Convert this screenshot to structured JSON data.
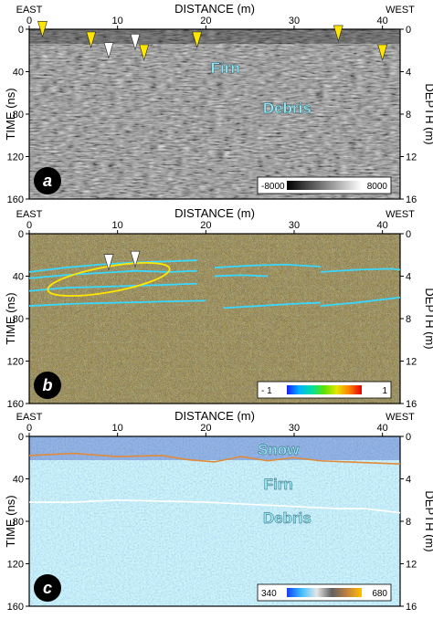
{
  "figure": {
    "panels": [
      {
        "id": "a",
        "top_axis": {
          "title": "DISTANCE (m)",
          "left_end": "EAST",
          "right_end": "WEST",
          "ticks": [
            {
              "v": 0,
              "label": "0"
            },
            {
              "v": 10,
              "label": "10"
            },
            {
              "v": 20,
              "label": "20"
            },
            {
              "v": 30,
              "label": "30"
            },
            {
              "v": 40,
              "label": "40"
            }
          ]
        },
        "left_axis": {
          "title": "TIME (ns)",
          "ticks": [
            {
              "v": 0,
              "label": "0"
            },
            {
              "v": 40,
              "label": "40"
            },
            {
              "v": 80,
              "label": "80"
            },
            {
              "v": 120,
              "label": "120"
            },
            {
              "v": 160,
              "label": "160"
            }
          ]
        },
        "right_axis": {
          "title": "DEPTH (m)",
          "ticks": [
            {
              "v": 0,
              "label": "0"
            },
            {
              "v": 4,
              "label": "4"
            },
            {
              "v": 8,
              "label": "8"
            },
            {
              "v": 12,
              "label": "12"
            },
            {
              "v": 16,
              "label": "16"
            }
          ]
        },
        "annotations": [
          "Firn",
          "Debris"
        ],
        "colorbar": {
          "min_label": "-8000",
          "max_label": "8000",
          "colors": [
            "#000000",
            "#ffffff"
          ]
        },
        "markers": {
          "yellow": [
            {
              "x": 1.5,
              "t": 2
            },
            {
              "x": 7,
              "t": 12
            },
            {
              "x": 13,
              "t": 24
            },
            {
              "x": 19,
              "t": 12
            },
            {
              "x": 35,
              "t": 6
            },
            {
              "x": 40,
              "t": 24
            }
          ],
          "white": [
            {
              "x": 9,
              "t": 22
            },
            {
              "x": 12,
              "t": 14
            }
          ]
        }
      },
      {
        "id": "b",
        "top_axis": {
          "title": "DISTANCE (m)",
          "left_end": "EAST",
          "right_end": "WEST",
          "ticks": [
            {
              "v": 0,
              "label": "0"
            },
            {
              "v": 10,
              "label": "10"
            },
            {
              "v": 20,
              "label": "20"
            },
            {
              "v": 30,
              "label": "30"
            },
            {
              "v": 40,
              "label": "40"
            }
          ]
        },
        "left_axis": {
          "title": "TIME (ns)",
          "ticks": [
            {
              "v": 0,
              "label": "0"
            },
            {
              "v": 40,
              "label": "40"
            },
            {
              "v": 80,
              "label": "80"
            },
            {
              "v": 120,
              "label": "120"
            },
            {
              "v": 160,
              "label": "160"
            }
          ]
        },
        "right_axis": {
          "title": "DEPTH (m)",
          "ticks": [
            {
              "v": 0,
              "label": "0"
            },
            {
              "v": 4,
              "label": "4"
            },
            {
              "v": 8,
              "label": "8"
            },
            {
              "v": 12,
              "label": "12"
            },
            {
              "v": 16,
              "label": "16"
            }
          ]
        },
        "annotations": [],
        "colorbar": {
          "min_label": "- 1",
          "max_label": "1",
          "colors": [
            "#1a1aff",
            "#00b4ff",
            "#00e0a0",
            "#60e000",
            "#e6e600",
            "#ff8000",
            "#e00000"
          ]
        },
        "picked_horizons": [
          [
            [
              0,
              36
            ],
            [
              4,
              32
            ],
            [
              8,
              29
            ],
            [
              12,
              27
            ],
            [
              16,
              26
            ],
            [
              19,
              25
            ]
          ],
          [
            [
              0,
              42
            ],
            [
              4,
              39
            ],
            [
              8,
              37
            ],
            [
              12,
              35
            ],
            [
              16,
              36
            ],
            [
              19,
              35
            ]
          ],
          [
            [
              0,
              54
            ],
            [
              4,
              51
            ],
            [
              8,
              50
            ],
            [
              12,
              49
            ],
            [
              16,
              48
            ],
            [
              19,
              47
            ]
          ],
          [
            [
              0,
              68
            ],
            [
              5,
              66
            ],
            [
              10,
              65
            ],
            [
              15,
              64
            ],
            [
              20,
              63
            ]
          ],
          [
            [
              21,
              32
            ],
            [
              25,
              30
            ],
            [
              29,
              29
            ],
            [
              33,
              31
            ]
          ],
          [
            [
              21,
              40
            ],
            [
              24,
              39
            ],
            [
              27,
              40
            ]
          ],
          [
            [
              22,
              70
            ],
            [
              26,
              68
            ],
            [
              30,
              66
            ],
            [
              33,
              65
            ]
          ],
          [
            [
              33,
              36
            ],
            [
              37,
              34
            ],
            [
              41,
              33
            ],
            [
              42,
              34
            ]
          ],
          [
            [
              33,
              68
            ],
            [
              37,
              65
            ],
            [
              40,
              62
            ],
            [
              42,
              60
            ]
          ]
        ],
        "ellipse": {
          "cx": 9,
          "ct": 43,
          "rx": 7,
          "rt": 12,
          "color": "#ffe600"
        },
        "markers": {
          "white": [
            {
              "x": 9,
              "t": 29
            },
            {
              "x": 12,
              "t": 26
            }
          ]
        }
      },
      {
        "id": "c",
        "top_axis": {
          "title": "DISTANCE (m)",
          "left_end": "EAST",
          "right_end": "WEST",
          "ticks": [
            {
              "v": 0,
              "label": "0"
            },
            {
              "v": 10,
              "label": "10"
            },
            {
              "v": 20,
              "label": "20"
            },
            {
              "v": 30,
              "label": "30"
            },
            {
              "v": 40,
              "label": "40"
            }
          ]
        },
        "left_axis": {
          "title": "TIME (ns)",
          "ticks": [
            {
              "v": 0,
              "label": "0"
            },
            {
              "v": 40,
              "label": "40"
            },
            {
              "v": 80,
              "label": "80"
            },
            {
              "v": 120,
              "label": "120"
            },
            {
              "v": 160,
              "label": "160"
            }
          ]
        },
        "right_axis": {
          "title": "DEPTH (m)",
          "ticks": [
            {
              "v": 0,
              "label": "0"
            },
            {
              "v": 4,
              "label": "4"
            },
            {
              "v": 8,
              "label": "8"
            },
            {
              "v": 12,
              "label": "12"
            },
            {
              "v": 16,
              "label": "16"
            }
          ]
        },
        "annotations": [
          "Snow",
          "Firn",
          "Debris"
        ],
        "colorbar": {
          "min_label": "340",
          "max_label": "680",
          "colors": [
            "#1040ff",
            "#40c0ff",
            "#e6e6e6",
            "#606060",
            "#c08040",
            "#ffc000"
          ]
        },
        "snow_firn_boundary": [
          [
            0,
            18
          ],
          [
            5,
            16
          ],
          [
            10,
            19
          ],
          [
            15,
            18
          ],
          [
            18,
            22
          ],
          [
            21,
            24
          ],
          [
            24,
            19
          ],
          [
            27,
            23
          ],
          [
            30,
            20
          ],
          [
            33,
            23
          ],
          [
            36,
            24
          ],
          [
            39,
            25
          ],
          [
            42,
            26
          ]
        ],
        "firn_debris_boundary": [
          [
            0,
            62
          ],
          [
            5,
            62
          ],
          [
            10,
            60
          ],
          [
            15,
            61
          ],
          [
            20,
            62
          ],
          [
            25,
            64
          ],
          [
            30,
            66
          ],
          [
            35,
            68
          ],
          [
            38,
            68
          ],
          [
            42,
            72
          ]
        ]
      }
    ]
  }
}
